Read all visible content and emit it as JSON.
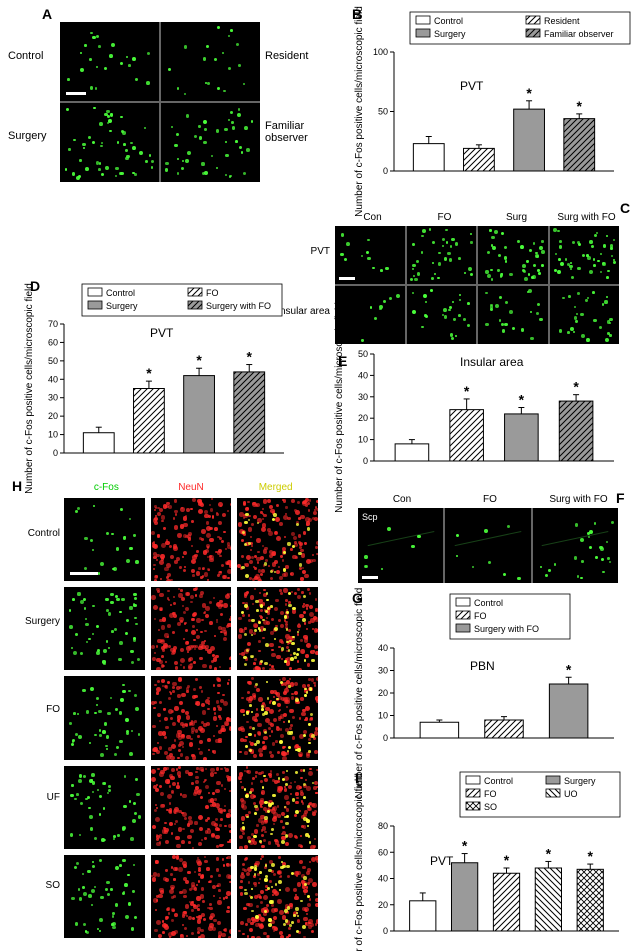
{
  "colors": {
    "bg": "#ffffff",
    "ink": "#000000",
    "micro_bg": "#000000",
    "cfos_green": "#4aff3a",
    "neun_red": "#ff2a2a",
    "merged_yellow": "#ffff3a",
    "bar_white": "#ffffff",
    "bar_gray": "#9a9a9a",
    "axis": "#000000"
  },
  "fonts": {
    "panel_letter_pt": 14,
    "label_pt": 11,
    "axis_label_pt": 10,
    "tick_pt": 9,
    "legend_pt": 9,
    "col_hdr_pt": 10
  },
  "panelA": {
    "letter": "A",
    "rows": 2,
    "cols": 2,
    "labels": {
      "tl": "Control",
      "tr": "Resident",
      "bl": "Surgery",
      "br": "Familiar observer"
    },
    "density": [
      22,
      19,
      52,
      44
    ]
  },
  "panelB": {
    "letter": "B",
    "title": "PVT",
    "ylabel": "Number of c-Fos positive cells/microscopic field",
    "legend": [
      "Control",
      "Resident",
      "Surgery",
      "Familiar observer"
    ],
    "fills": [
      "none",
      "hatch",
      "gray",
      "gray-hatch"
    ],
    "values": [
      23,
      19,
      52,
      44
    ],
    "errors": [
      6,
      3,
      7,
      4
    ],
    "stars": [
      false,
      false,
      true,
      true
    ],
    "ylim": [
      0,
      100
    ],
    "ytick_step": 50
  },
  "panelC": {
    "letter": "C",
    "cols": [
      "Con",
      "FO",
      "Surg",
      "Surg with FO"
    ],
    "rows": [
      "PVT",
      "Insular area"
    ],
    "density": [
      [
        11,
        35,
        42,
        44
      ],
      [
        8,
        24,
        22,
        28
      ]
    ]
  },
  "panelD": {
    "letter": "D",
    "title": "PVT",
    "ylabel": "Number of c-Fos positive cells/microscopic field",
    "legend": [
      "Control",
      "FO",
      "Surgery",
      "Surgery with FO"
    ],
    "fills": [
      "none",
      "hatch",
      "gray",
      "gray-hatch"
    ],
    "values": [
      11,
      35,
      42,
      44
    ],
    "errors": [
      3,
      4,
      4,
      4
    ],
    "stars": [
      false,
      true,
      true,
      true
    ],
    "ylim": [
      0,
      70
    ],
    "ytick_step": 10
  },
  "panelE": {
    "letter": "E",
    "title": "Insular area",
    "ylabel": "Number of c-Fos positive cells/microscopic field",
    "legend": null,
    "fills": [
      "none",
      "hatch",
      "gray",
      "gray-hatch"
    ],
    "values": [
      8,
      24,
      22,
      28
    ],
    "errors": [
      2,
      5,
      3,
      3
    ],
    "stars": [
      false,
      true,
      true,
      true
    ],
    "ylim": [
      0,
      50
    ],
    "ytick_step": 10
  },
  "panelF": {
    "letter": "F",
    "cols": [
      "Con",
      "FO",
      "Surg with FO"
    ],
    "inset": "Scp",
    "density": [
      7,
      8,
      24
    ]
  },
  "panelG": {
    "letter": "G",
    "title": "PBN",
    "ylabel": "Number of c-Fos positive cells/microscopic field",
    "legend": [
      "Control",
      "FO",
      "Surgery with FO"
    ],
    "fills": [
      "none",
      "hatch",
      "gray"
    ],
    "values": [
      7,
      8,
      24
    ],
    "errors": [
      1,
      1.5,
      3
    ],
    "stars": [
      false,
      false,
      true
    ],
    "ylim": [
      0,
      40
    ],
    "ytick_step": 10
  },
  "panelH": {
    "letter": "H",
    "col_headers": [
      "c-Fos",
      "NeuN",
      "Merged"
    ],
    "header_colors": [
      "#00cc00",
      "#ff2a2a",
      "#cccc00"
    ],
    "row_headers": [
      "Control",
      "Surgery",
      "FO",
      "UF",
      "SO"
    ],
    "density_green": [
      22,
      52,
      44,
      48,
      47
    ]
  },
  "panelI": {
    "letter": "I",
    "title": "PVT",
    "ylabel": "Number of c-Fos positive cells/microscopic field",
    "legend": [
      "Control",
      "Surgery",
      "FO",
      "UO",
      "SO"
    ],
    "fills": [
      "none",
      "gray",
      "hatch",
      "hatch2",
      "cross"
    ],
    "values": [
      23,
      52,
      44,
      48,
      47
    ],
    "errors": [
      6,
      7,
      4,
      5,
      4
    ],
    "stars": [
      false,
      true,
      true,
      true,
      true
    ],
    "ylim": [
      0,
      80
    ],
    "ytick_step": 20
  }
}
